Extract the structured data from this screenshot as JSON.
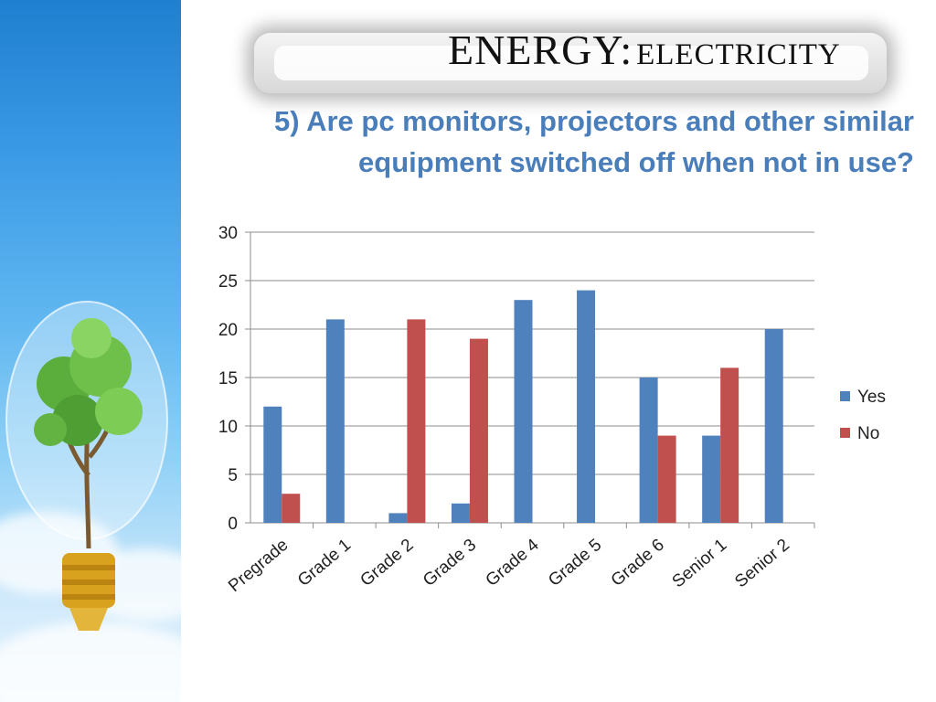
{
  "header": {
    "title_main": "ENERGY:",
    "title_sub": "ELECTRICITY",
    "question_line1": "5) Are pc monitors, projectors and other similar",
    "question_line2": "equipment switched off when not in use?"
  },
  "chart_data": {
    "type": "bar",
    "categories": [
      "Pregrade",
      "Grade 1",
      "Grade 2",
      "Grade 3",
      "Grade 4",
      "Grade 5",
      "Grade 6",
      "Senior 1",
      "Senior 2"
    ],
    "series": [
      {
        "name": "Yes",
        "color": "#4f81bd",
        "values": [
          12,
          21,
          1,
          2,
          23,
          24,
          15,
          9,
          20
        ]
      },
      {
        "name": "No",
        "color": "#c0504d",
        "values": [
          3,
          0,
          21,
          19,
          0,
          0,
          9,
          16,
          0
        ]
      }
    ],
    "ylim": [
      0,
      30
    ],
    "yticks": [
      0,
      5,
      10,
      15,
      20,
      25,
      30
    ],
    "grid": true,
    "legend": "right"
  }
}
